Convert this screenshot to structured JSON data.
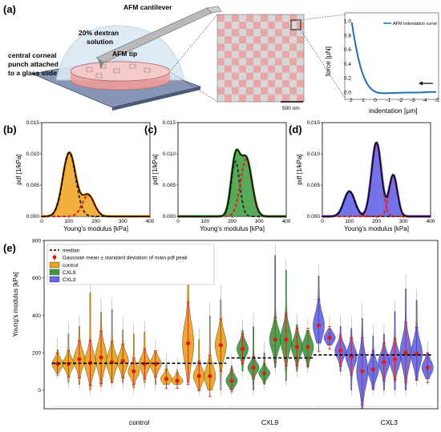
{
  "panel_labels": {
    "a": "(a)",
    "b": "(b)",
    "c": "(c)",
    "d": "(d)",
    "e": "(e)"
  },
  "schematic": {
    "cantilever": "AFM cantilever",
    "dextran": "20% dextran\nsolution",
    "punch": "central corneal\npunch attached\nto a glass slide",
    "tip": "AFM tip",
    "scale": "500 nm",
    "colors": {
      "pink": "#e8a7a7",
      "grey": "#d7d7d7",
      "dome": "#dbe9f5",
      "glass": "#7c8aa8"
    }
  },
  "chart_data": [
    {
      "id": "indentation",
      "type": "line",
      "legend": [
        "AFM indentation curve"
      ],
      "xlabel": "indentation [µm]",
      "ylabel": "force [µN]",
      "xlim": [
        2,
        -5
      ],
      "ylim": [
        -0.05,
        1.05
      ],
      "x_ticks": [
        "2",
        "1",
        "0",
        "-1",
        "-2",
        "-3",
        "-4",
        "-5"
      ],
      "y_ticks": [
        "0.0",
        "0.2",
        "0.4",
        "0.6",
        "0.8",
        "1.0"
      ],
      "series": [
        {
          "name": "AFM indentation curve",
          "color": "#1f6fb2",
          "x": [
            1.95,
            1.8,
            1.6,
            1.4,
            1.2,
            1.0,
            0.8,
            0.6,
            0.4,
            0.2,
            0.0,
            -0.3,
            -0.8,
            -1.5,
            -2.5,
            -3.5,
            -4.5,
            -5.0
          ],
          "y": [
            0.98,
            0.82,
            0.63,
            0.47,
            0.34,
            0.24,
            0.16,
            0.1,
            0.06,
            0.03,
            0.01,
            -0.005,
            -0.01,
            -0.005,
            0.0,
            0.0,
            0.01,
            0.01
          ]
        }
      ]
    },
    {
      "id": "pdf-control",
      "type": "line",
      "xlabel": "Young's modulus [kPa]",
      "ylabel": "pdf [1/kPa]",
      "xlim": [
        0,
        400
      ],
      "ylim": [
        0,
        0.015
      ],
      "x_ticks": [
        "0",
        "100",
        "200",
        "300",
        "400"
      ],
      "y_ticks": [
        "0.000",
        "0.005",
        "0.010",
        "0.015"
      ],
      "fill_color": "#f0a21c",
      "components": [
        {
          "mu": 102,
          "sigma": 24,
          "peak": 0.0102
        },
        {
          "mu": 172,
          "sigma": 22,
          "peak": 0.0034
        }
      ]
    },
    {
      "id": "pdf-cxl9",
      "type": "line",
      "xlabel": "Young's modulus [kPa]",
      "ylabel": "pdf [1/kPa]",
      "xlim": [
        0,
        400
      ],
      "ylim": [
        0,
        0.015
      ],
      "x_ticks": [
        "0",
        "100",
        "200",
        "300",
        "400"
      ],
      "y_ticks": [
        "0.000",
        "0.005",
        "0.010",
        "0.015"
      ],
      "fill_color": "#3a9b3a",
      "components": [
        {
          "mu": 212,
          "sigma": 16,
          "peak": 0.0088
        },
        {
          "mu": 252,
          "sigma": 21,
          "peak": 0.0092
        }
      ]
    },
    {
      "id": "pdf-cxl3",
      "type": "line",
      "xlabel": "Young's modulus [kPa]",
      "ylabel": "pdf [1/kPa]",
      "xlim": [
        0,
        400
      ],
      "ylim": [
        0,
        0.015
      ],
      "x_ticks": [
        "0",
        "100",
        "200",
        "300",
        "400"
      ],
      "y_ticks": [
        "0.000",
        "0.005",
        "0.010",
        "0.015"
      ],
      "fill_color": "#5a5ae6",
      "components": [
        {
          "mu": 100,
          "sigma": 20,
          "peak": 0.004
        },
        {
          "mu": 200,
          "sigma": 18,
          "peak": 0.0118
        },
        {
          "mu": 262,
          "sigma": 15,
          "peak": 0.0066
        }
      ]
    },
    {
      "id": "violin",
      "type": "violin",
      "ylabel": "Young's modulus [kPa]",
      "ylim": [
        -100,
        800
      ],
      "y_ticks": [
        "0",
        "200",
        "400",
        "600",
        "800"
      ],
      "group_labels": [
        "control",
        "CXL9",
        "CXL3"
      ],
      "legend": [
        "median",
        "Gaussian mean ± standard deviation of main pdf peak",
        "control",
        "CXL9",
        "CXL3"
      ],
      "colors": {
        "control": "#e8a31f",
        "CXL9": "#3f9a3f",
        "CXL3": "#6565e6"
      },
      "medians": {
        "control": 143,
        "CXL9": 172,
        "CXL3": 188
      },
      "violins": [
        {
          "g": "control",
          "mean": 140,
          "sd": 30,
          "lo": 90,
          "hi": 220
        },
        {
          "g": "control",
          "mean": 140,
          "sd": 35,
          "lo": 40,
          "hi": 300
        },
        {
          "g": "control",
          "mean": 165,
          "sd": 50,
          "lo": 30,
          "hi": 340
        },
        {
          "g": "control",
          "mean": 145,
          "sd": 60,
          "lo": 0,
          "hi": 520
        },
        {
          "g": "control",
          "mean": 175,
          "sd": 70,
          "lo": 20,
          "hi": 430
        },
        {
          "g": "control",
          "mean": 150,
          "sd": 55,
          "lo": 40,
          "hi": 430
        },
        {
          "g": "control",
          "mean": 155,
          "sd": 45,
          "lo": 40,
          "hi": 330
        },
        {
          "g": "control",
          "mean": 100,
          "sd": 35,
          "lo": 10,
          "hi": 300
        },
        {
          "g": "control",
          "mean": 140,
          "sd": 40,
          "lo": 40,
          "hi": 310
        },
        {
          "g": "control",
          "mean": 140,
          "sd": 35,
          "lo": 30,
          "hi": 210
        },
        {
          "g": "control",
          "mean": 60,
          "sd": 25,
          "lo": 30,
          "hi": 140
        },
        {
          "g": "control",
          "mean": 50,
          "sd": 20,
          "lo": 30,
          "hi": 110
        },
        {
          "g": "control",
          "mean": 250,
          "sd": 110,
          "lo": 40,
          "hi": 650
        },
        {
          "g": "control",
          "mean": 75,
          "sd": 40,
          "lo": 0,
          "hi": 270
        },
        {
          "g": "control",
          "mean": 75,
          "sd": 55,
          "lo": 0,
          "hi": 410
        },
        {
          "g": "control",
          "mean": 240,
          "sd": 70,
          "lo": 0,
          "hi": 500
        },
        {
          "g": "CXL9",
          "mean": 50,
          "sd": 30,
          "lo": 0,
          "hi": 130
        },
        {
          "g": "CXL9",
          "mean": 220,
          "sd": 40,
          "lo": 100,
          "hi": 320
        },
        {
          "g": "CXL9",
          "mean": 120,
          "sd": 30,
          "lo": 0,
          "hi": 350
        },
        {
          "g": "CXL9",
          "mean": 90,
          "sd": 25,
          "lo": 30,
          "hi": 200
        },
        {
          "g": "CXL9",
          "mean": 270,
          "sd": 60,
          "lo": 120,
          "hi": 720
        },
        {
          "g": "CXL9",
          "mean": 270,
          "sd": 70,
          "lo": 50,
          "hi": 640
        },
        {
          "g": "CXL9",
          "mean": 230,
          "sd": 50,
          "lo": 100,
          "hi": 350
        },
        {
          "g": "CXL9",
          "mean": 230,
          "sd": 50,
          "lo": 120,
          "hi": 320
        },
        {
          "g": "CXL3",
          "mean": 345,
          "sd": 70,
          "lo": 250,
          "hi": 610
        },
        {
          "g": "CXL3",
          "mean": 280,
          "sd": 30,
          "lo": 240,
          "hi": 330
        },
        {
          "g": "CXL3",
          "mean": 210,
          "sd": 40,
          "lo": 100,
          "hi": 340
        },
        {
          "g": "CXL3",
          "mean": 180,
          "sd": 50,
          "lo": 0,
          "hi": 330
        },
        {
          "g": "CXL3",
          "mean": 100,
          "sd": 90,
          "lo": -100,
          "hi": 400
        },
        {
          "g": "CXL3",
          "mean": 110,
          "sd": 50,
          "lo": 0,
          "hi": 290
        },
        {
          "g": "CXL3",
          "mean": 150,
          "sd": 50,
          "lo": 0,
          "hi": 300
        },
        {
          "g": "CXL3",
          "mean": 165,
          "sd": 55,
          "lo": 0,
          "hi": 420
        },
        {
          "g": "CXL3",
          "mean": 200,
          "sd": 80,
          "lo": 0,
          "hi": 560
        },
        {
          "g": "CXL3",
          "mean": 195,
          "sd": 70,
          "lo": 50,
          "hi": 480
        },
        {
          "g": "CXL3",
          "mean": 120,
          "sd": 40,
          "lo": 60,
          "hi": 200
        }
      ]
    }
  ]
}
